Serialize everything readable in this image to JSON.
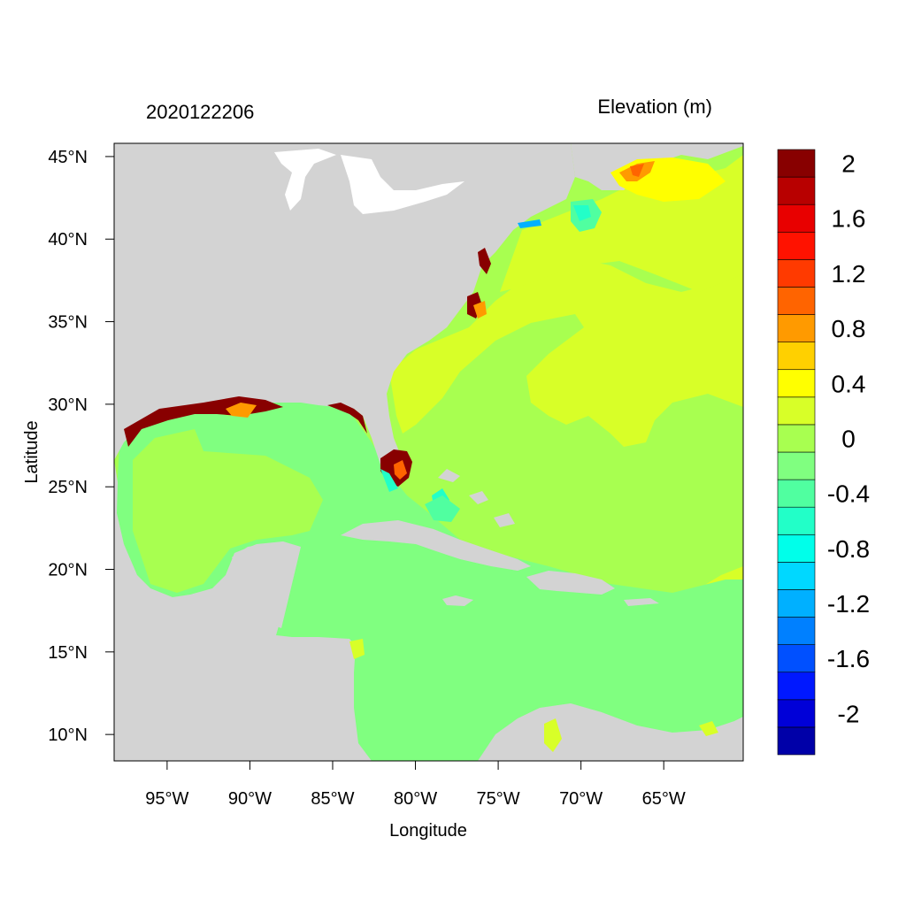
{
  "header": {
    "timestamp": "2020122206",
    "variable": "Elevation (m)"
  },
  "axes": {
    "xlabel": "Longitude",
    "ylabel": "Latitude",
    "lon_range": [
      -98.2,
      -60.2
    ],
    "lat_range": [
      8.4,
      45.8
    ],
    "lon_ticks": [
      {
        "value": -95,
        "label": "95°W"
      },
      {
        "value": -90,
        "label": "90°W"
      },
      {
        "value": -85,
        "label": "85°W"
      },
      {
        "value": -80,
        "label": "80°W"
      },
      {
        "value": -75,
        "label": "75°W"
      },
      {
        "value": -70,
        "label": "70°W"
      },
      {
        "value": -65,
        "label": "65°W"
      }
    ],
    "lat_ticks": [
      {
        "value": 45,
        "label": "45°N"
      },
      {
        "value": 40,
        "label": "40°N"
      },
      {
        "value": 35,
        "label": "35°N"
      },
      {
        "value": 30,
        "label": "30°N"
      },
      {
        "value": 25,
        "label": "25°N"
      },
      {
        "value": 20,
        "label": "20°N"
      },
      {
        "value": 15,
        "label": "15°N"
      },
      {
        "value": 10,
        "label": "10°N"
      }
    ]
  },
  "colorbar": {
    "colors_bottom_to_top": [
      "#0000a8",
      "#0000d8",
      "#0018ff",
      "#0050ff",
      "#0080ff",
      "#00b0ff",
      "#00d8ff",
      "#00ffea",
      "#22ffc8",
      "#50ffa0",
      "#80ff80",
      "#a8ff50",
      "#d8ff28",
      "#ffff00",
      "#ffd000",
      "#ff9a00",
      "#ff6400",
      "#ff3a00",
      "#ff1200",
      "#e80000",
      "#b80000",
      "#880000"
    ],
    "labels": [
      "-2",
      "-1.6",
      "-1.2",
      "-0.8",
      "-0.4",
      "0",
      "0.4",
      "0.8",
      "1.2",
      "1.6",
      "2"
    ],
    "label_box_index": [
      1,
      3,
      5,
      7,
      9,
      11,
      13,
      15,
      17,
      19,
      21
    ]
  },
  "map_colors": {
    "land": "#d3d3d3",
    "lakes": "#ffffff",
    "atlantic_0_to_0p2": "#a8ff50",
    "gulf_caribbean_m0p2_to_0": "#80ff80",
    "atlantic_0p2_to_0p4": "#d8ff28",
    "high_surge": "#880000",
    "light_red": "#ff6400",
    "orange": "#ff9a00",
    "yellow": "#ffff00",
    "cyan": "#22ffc8",
    "aqua": "#50ffa0",
    "blue": "#00b0ff"
  }
}
